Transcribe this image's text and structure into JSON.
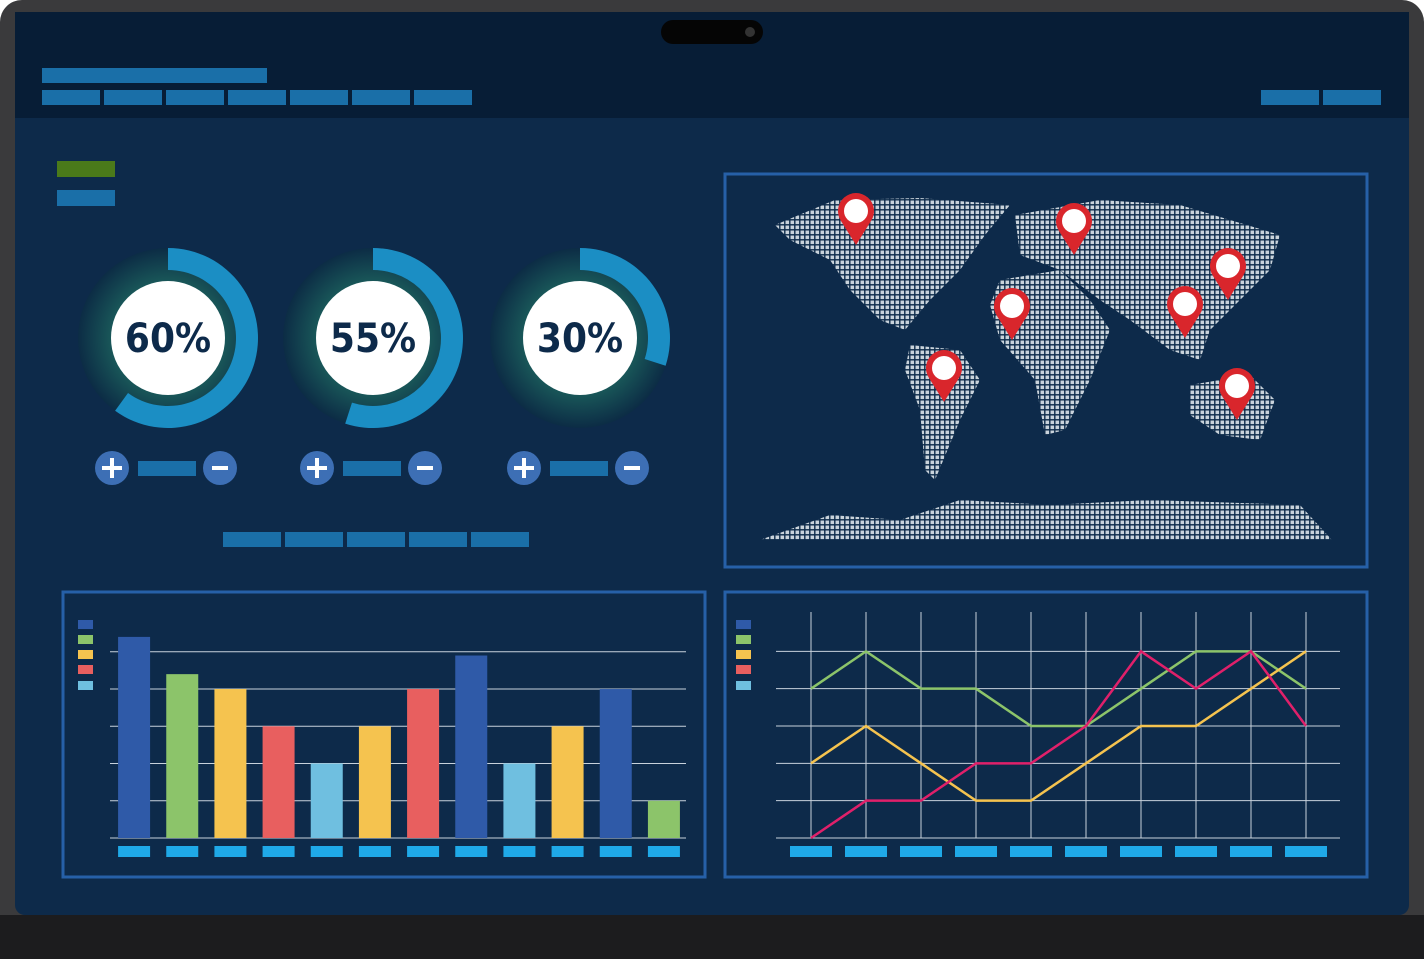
{
  "chart_data": [
    {
      "type": "donut",
      "values": [
        60
      ],
      "value_labels": [
        "60%"
      ],
      "color": "#1b8ec4"
    },
    {
      "type": "donut",
      "values": [
        55
      ],
      "value_labels": [
        "55%"
      ],
      "color": "#1b8ec4"
    },
    {
      "type": "donut",
      "values": [
        30
      ],
      "value_labels": [
        "30%"
      ],
      "color": "#1b8ec4"
    },
    {
      "type": "bar",
      "categories": [
        null,
        null,
        null,
        null,
        null,
        null,
        null,
        null,
        null,
        null,
        null,
        null
      ],
      "values": [
        5.4,
        4.4,
        4,
        3,
        2,
        3,
        4,
        4.9,
        2,
        3,
        4,
        1
      ],
      "colors": [
        "#2f5aa8",
        "#8cc46a",
        "#f5c34f",
        "#e85f5f",
        "#6fbfe0",
        "#f5c34f",
        "#e85f5f",
        "#2f5aa8",
        "#6fbfe0",
        "#f5c34f",
        "#2f5aa8",
        "#8cc46a"
      ],
      "ylim": [
        0,
        5.8
      ],
      "yticks": [
        0,
        1,
        2,
        3,
        4,
        5
      ],
      "grid": true
    },
    {
      "type": "line",
      "categories": [
        null,
        null,
        null,
        null,
        null,
        null,
        null,
        null,
        null,
        null
      ],
      "series": [
        {
          "color": "#8cc46a",
          "values": [
            4,
            5,
            4,
            4,
            3,
            3,
            4,
            5,
            5,
            4
          ]
        },
        {
          "color": "#f5c34f",
          "values": [
            2,
            3,
            2,
            1,
            1,
            2,
            3,
            3,
            4,
            5
          ]
        },
        {
          "color": "#e0206a",
          "values": [
            0,
            1,
            1,
            2,
            2,
            3,
            5,
            4,
            5,
            3
          ]
        }
      ],
      "ylim": [
        0,
        6
      ],
      "yticks": [
        0,
        1,
        2,
        3,
        4,
        5
      ],
      "grid": true
    }
  ]
}
